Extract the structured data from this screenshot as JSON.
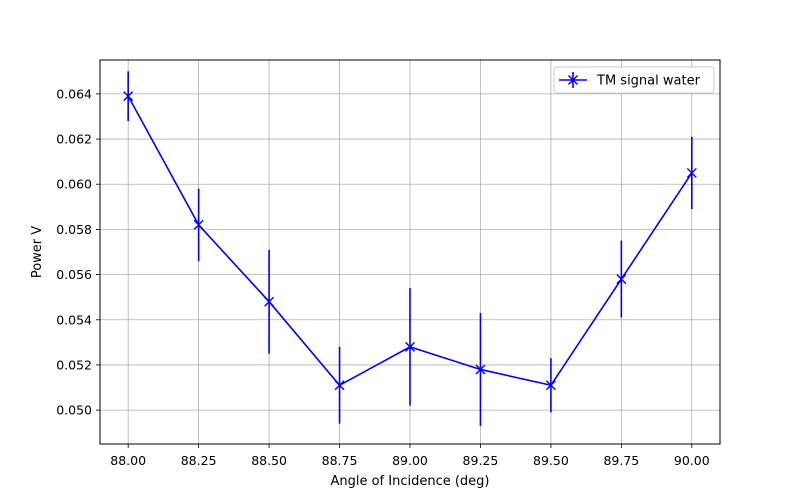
{
  "chart_data": {
    "type": "line",
    "title": "",
    "xlabel": "Angle of Incidence (deg)",
    "ylabel": "Power V",
    "xlim": [
      87.9,
      90.1
    ],
    "ylim": [
      0.0485,
      0.0655
    ],
    "xticks": [
      88.0,
      88.25,
      88.5,
      88.75,
      89.0,
      89.25,
      89.5,
      89.75,
      90.0
    ],
    "xtick_labels": [
      "88.00",
      "88.25",
      "88.50",
      "88.75",
      "89.00",
      "89.25",
      "89.50",
      "89.75",
      "90.00"
    ],
    "yticks": [
      0.05,
      0.052,
      0.054,
      0.056,
      0.058,
      0.06,
      0.062,
      0.064
    ],
    "ytick_labels": [
      "0.050",
      "0.052",
      "0.054",
      "0.056",
      "0.058",
      "0.060",
      "0.062",
      "0.064"
    ],
    "grid": true,
    "legend_position": "top-right",
    "series": [
      {
        "name": "TM signal water",
        "color": "#0000ff",
        "marker": "x",
        "x": [
          88.0,
          88.25,
          88.5,
          88.75,
          89.0,
          89.25,
          89.5,
          89.75,
          90.0
        ],
        "y": [
          0.0639,
          0.0582,
          0.0548,
          0.0511,
          0.0528,
          0.0518,
          0.0511,
          0.0558,
          0.0605
        ],
        "yerr": [
          0.0011,
          0.0016,
          0.0023,
          0.0017,
          0.0026,
          0.0025,
          0.0012,
          0.0017,
          0.0016
        ]
      }
    ]
  }
}
